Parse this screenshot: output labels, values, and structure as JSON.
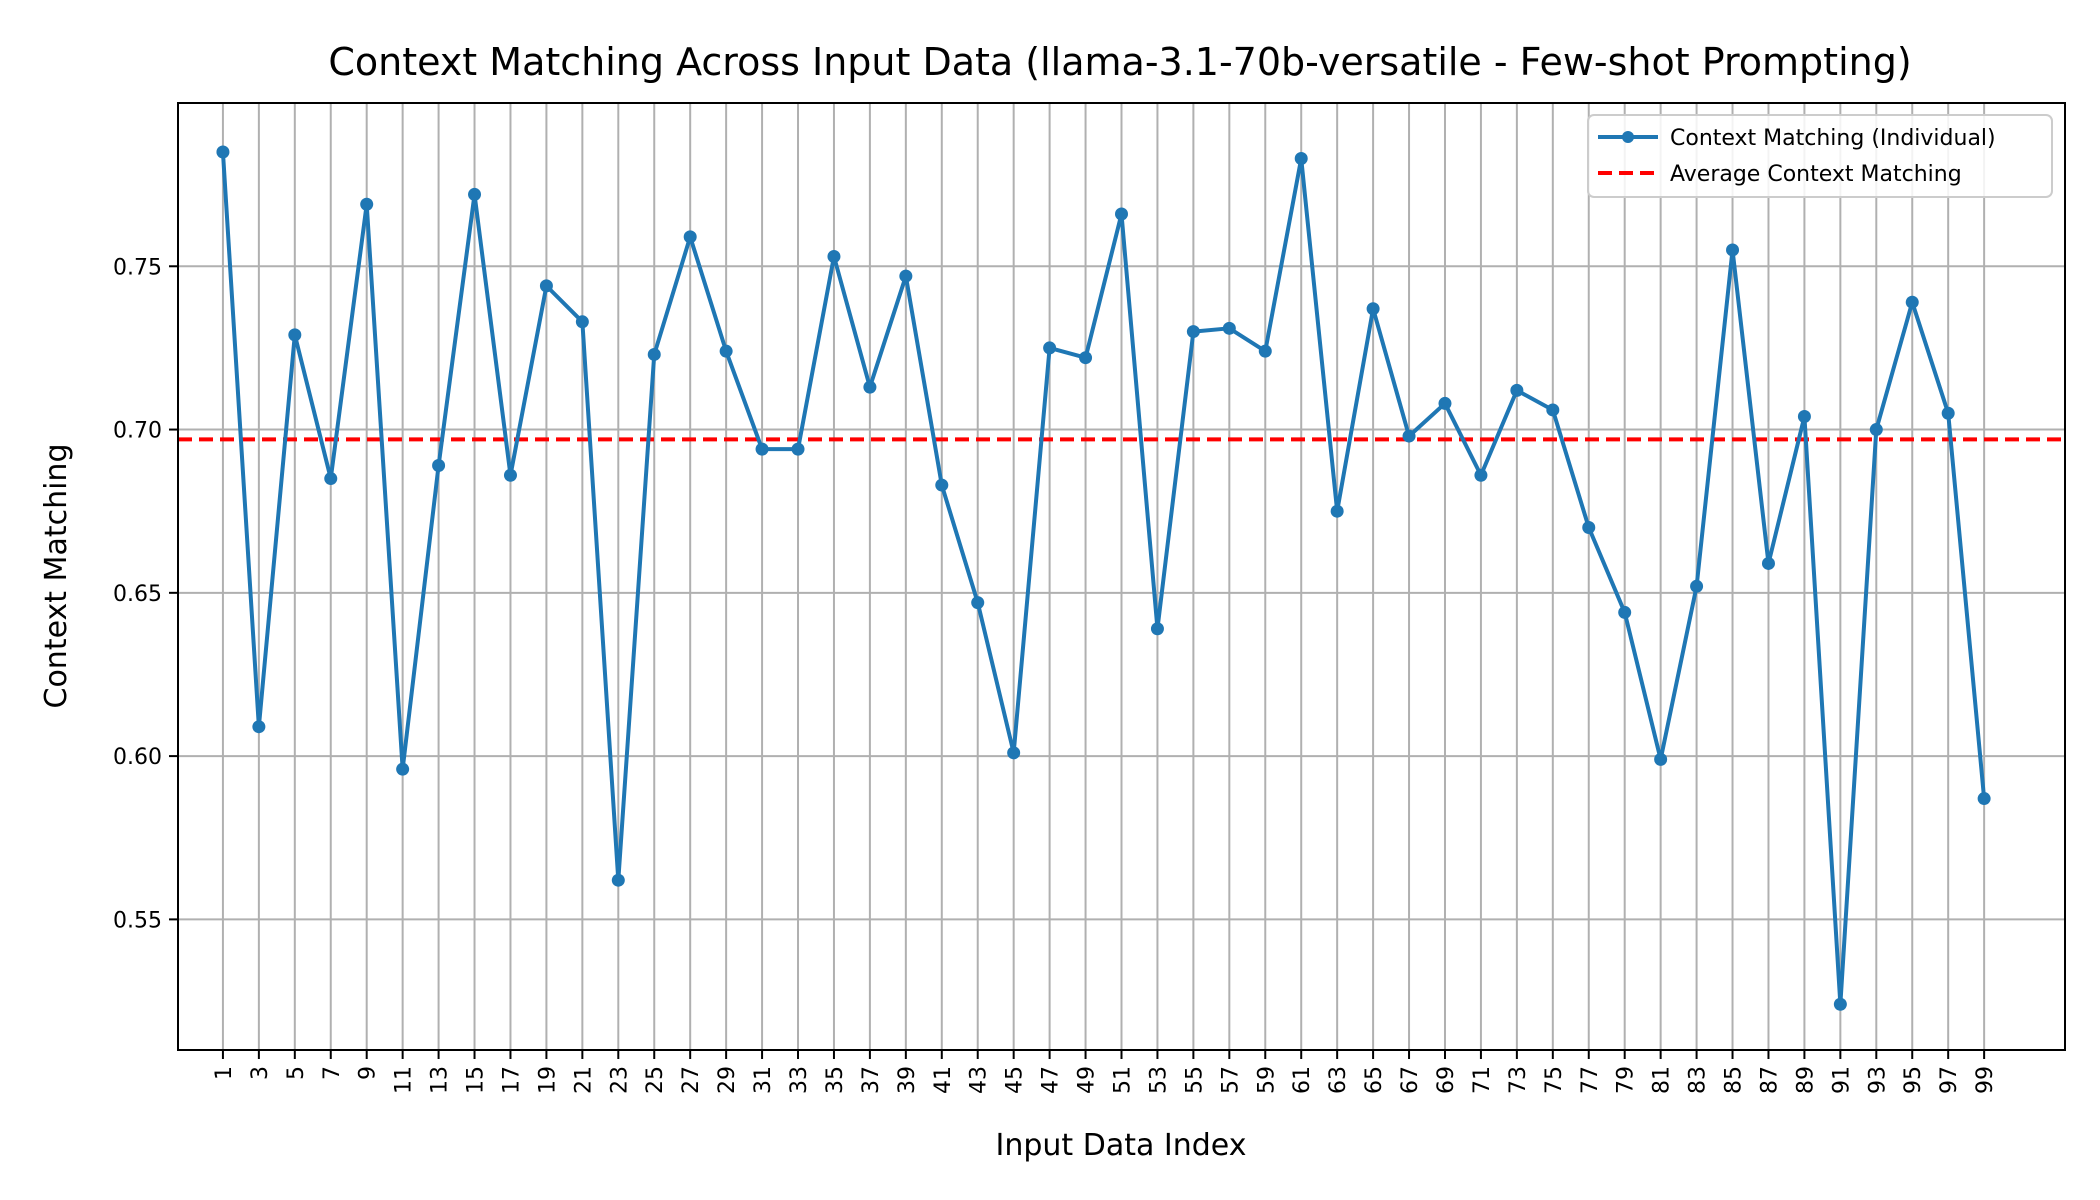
{
  "chart_data": {
    "type": "line",
    "title": "Context Matching Across Input Data (llama-3.1-70b-versatile - Few-shot Prompting)",
    "xlabel": "Input Data Index",
    "ylabel": "Context Matching",
    "xlim": [
      -1.5,
      103.5
    ],
    "ylim": [
      0.51,
      0.8
    ],
    "x_ticks": [
      1,
      3,
      5,
      7,
      9,
      11,
      13,
      15,
      17,
      19,
      21,
      23,
      25,
      27,
      29,
      31,
      33,
      35,
      37,
      39,
      41,
      43,
      45,
      47,
      49,
      51,
      53,
      55,
      57,
      59,
      61,
      63,
      65,
      67,
      69,
      71,
      73,
      75,
      77,
      79,
      81,
      83,
      85,
      87,
      89,
      91,
      93,
      95,
      97,
      99
    ],
    "y_ticks": [
      0.55,
      0.6,
      0.65,
      0.7,
      0.75
    ],
    "y_tick_labels": [
      "0.55",
      "0.60",
      "0.65",
      "0.70",
      "0.75"
    ],
    "grid": true,
    "legend_position": "top-right",
    "series": [
      {
        "name": "Context Matching (Individual)",
        "color": "#1f77b4",
        "style": "line-with-markers",
        "x": [
          1,
          3,
          5,
          7,
          9,
          11,
          13,
          15,
          17,
          19,
          21,
          23,
          25,
          27,
          29,
          31,
          33,
          35,
          37,
          39,
          41,
          43,
          45,
          47,
          49,
          51,
          53,
          55,
          57,
          59,
          61,
          63,
          65,
          67,
          69,
          71,
          73,
          75,
          77,
          79,
          81,
          83,
          85,
          87,
          89,
          91,
          93,
          95,
          97,
          99
        ],
        "values": [
          0.785,
          0.609,
          0.729,
          0.685,
          0.769,
          0.596,
          0.689,
          0.772,
          0.686,
          0.744,
          0.733,
          0.562,
          0.723,
          0.759,
          0.724,
          0.694,
          0.694,
          0.753,
          0.713,
          0.747,
          0.683,
          0.647,
          0.601,
          0.725,
          0.722,
          0.766,
          0.639,
          0.73,
          0.731,
          0.724,
          0.783,
          0.675,
          0.737,
          0.698,
          0.708,
          0.686,
          0.712,
          0.706,
          0.67,
          0.644,
          0.599,
          0.652,
          0.755,
          0.659,
          0.704,
          0.524,
          0.7,
          0.739,
          0.705,
          0.587
        ]
      },
      {
        "name": "Average Context Matching",
        "color": "#ff0000",
        "style": "dashed-horizontal",
        "value": 0.697
      }
    ]
  }
}
